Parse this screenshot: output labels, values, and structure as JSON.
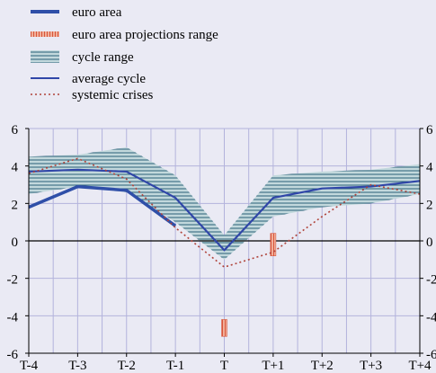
{
  "chart_data": {
    "type": "line",
    "x_categories": [
      "T-4",
      "T-3",
      "T-2",
      "T-1",
      "T",
      "T+1",
      "T+2",
      "T+3",
      "T+4"
    ],
    "ylim": [
      -6,
      6
    ],
    "yticks": [
      6,
      4,
      2,
      0,
      -2,
      -4,
      -6
    ],
    "ytick_labels": [
      "6",
      "4",
      "2",
      "0",
      "-2",
      "-4",
      "-6"
    ],
    "right_ytick_labels": [
      "6",
      "4",
      "2",
      "0",
      "-2",
      "-4",
      "-6"
    ],
    "grid": true,
    "legend_position": "top-left",
    "legend": [
      {
        "key": "euro_area",
        "label": "euro area"
      },
      {
        "key": "projections",
        "label": "euro area projections range"
      },
      {
        "key": "cycle_range",
        "label": "cycle range"
      },
      {
        "key": "average_cycle",
        "label": "average cycle"
      },
      {
        "key": "systemic_crises",
        "label": "systemic crises"
      }
    ],
    "series": [
      {
        "key": "euro_area",
        "name": "euro area",
        "color": "#2f4fa8",
        "x": [
          -4,
          -3,
          -2,
          -1
        ],
        "values": [
          1.8,
          2.9,
          2.7,
          0.8
        ]
      },
      {
        "key": "average_cycle",
        "name": "average cycle",
        "color": "#3046a8",
        "x": [
          -4,
          -3,
          -2,
          -1,
          0,
          1,
          2,
          3,
          4
        ],
        "values": [
          3.7,
          3.8,
          3.7,
          2.3,
          -0.5,
          2.3,
          2.8,
          2.9,
          3.2
        ]
      },
      {
        "key": "systemic_crises",
        "name": "systemic crises",
        "color": "#b0433a",
        "x": [
          -4,
          -3,
          -2,
          -1,
          0,
          1,
          2,
          3,
          4
        ],
        "values": [
          3.6,
          4.4,
          3.3,
          0.7,
          -1.4,
          -0.6,
          1.3,
          3.0,
          2.5
        ]
      }
    ],
    "cycle_range": {
      "name": "cycle range",
      "color": "#c2d8dc",
      "x": [
        -4,
        -3,
        -2,
        -1,
        0,
        1,
        2,
        3,
        4
      ],
      "upper": [
        4.5,
        4.6,
        5.0,
        3.5,
        0.3,
        3.5,
        3.7,
        3.8,
        4.1
      ],
      "lower": [
        2.5,
        2.9,
        2.6,
        1.0,
        -1.0,
        1.3,
        1.8,
        2.0,
        2.5
      ]
    },
    "projections_range": {
      "name": "euro area projections range",
      "color": "#e8876b",
      "bars": [
        {
          "x": 0,
          "low": -5.1,
          "high": -4.2
        },
        {
          "x": 1,
          "low": -0.8,
          "high": 0.4
        }
      ]
    }
  }
}
